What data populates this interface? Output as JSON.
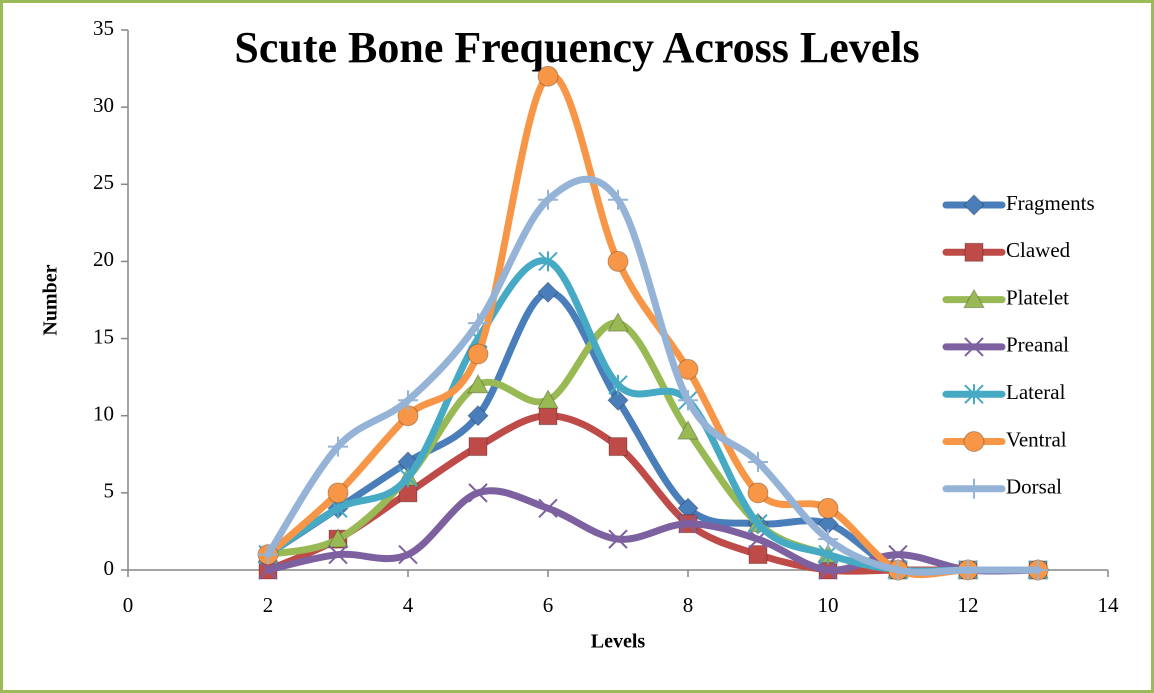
{
  "chart_data": {
    "type": "line",
    "title": "Scute Bone Frequency Across Levels",
    "x_label": "Levels",
    "y_label": "Number",
    "x": [
      2,
      3,
      4,
      5,
      6,
      7,
      8,
      9,
      10,
      11,
      12,
      13
    ],
    "xlim": [
      0,
      14
    ],
    "xticks": [
      0,
      2,
      4,
      6,
      8,
      10,
      12,
      14
    ],
    "ylim": [
      0,
      35
    ],
    "yticks": [
      0,
      5,
      10,
      15,
      20,
      25,
      30,
      35
    ],
    "grid": false,
    "smooth": true,
    "legend": "right",
    "series": [
      {
        "name": "Fragments",
        "color": "#4a7ebb",
        "marker": "diamond",
        "values": [
          1,
          4,
          7,
          10,
          18,
          11,
          4,
          3,
          3,
          0,
          0,
          0
        ]
      },
      {
        "name": "Clawed",
        "color": "#be4b48",
        "marker": "square",
        "values": [
          0,
          2,
          5,
          8,
          10,
          8,
          3,
          1,
          0,
          0,
          0,
          0
        ]
      },
      {
        "name": "Platelet",
        "color": "#98b954",
        "marker": "triangle",
        "values": [
          1,
          2,
          6,
          12,
          11,
          16,
          9,
          3,
          1,
          0,
          0,
          0
        ]
      },
      {
        "name": "Preanal",
        "color": "#7d60a0",
        "marker": "x",
        "values": [
          0,
          1,
          1,
          5,
          4,
          2,
          3,
          2,
          0,
          1,
          0,
          0
        ]
      },
      {
        "name": "Lateral",
        "color": "#46aac5",
        "marker": "star",
        "values": [
          1,
          4,
          6,
          15,
          20,
          12,
          11,
          3,
          1,
          0,
          0,
          0
        ]
      },
      {
        "name": "Ventral",
        "color": "#f79646",
        "marker": "circle",
        "values": [
          1,
          5,
          10,
          14,
          32,
          20,
          13,
          5,
          4,
          0,
          0,
          0
        ]
      },
      {
        "name": "Dorsal",
        "color": "#95b3d7",
        "marker": "plus",
        "values": [
          1,
          8,
          11,
          16,
          24,
          24,
          11,
          7,
          2,
          0,
          0,
          0
        ]
      }
    ]
  }
}
